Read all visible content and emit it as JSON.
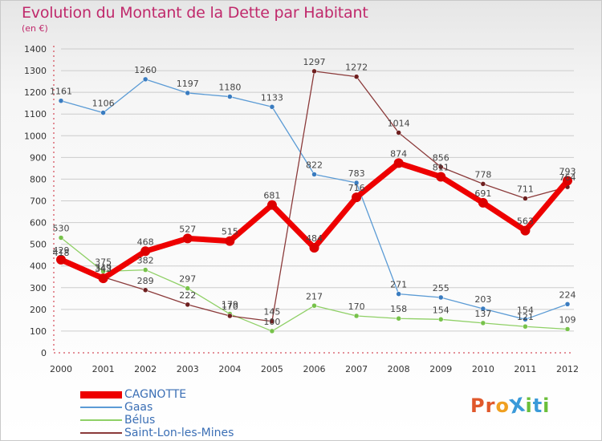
{
  "title": "Evolution du Montant de la Dette par Habitant",
  "subtitle": "(en €)",
  "logo": {
    "text": "ProXiti",
    "letter_colors": [
      "#e0582b",
      "#e0582b",
      "#f0a020",
      "#3a9ad9",
      "#6bbf3a",
      "#3a9ad9",
      "#6bbf3a"
    ]
  },
  "colors": {
    "axis": "#cc2233",
    "grid": "#cccccc",
    "tick_text": "#333333",
    "label_text": "#444444"
  },
  "chart_data": {
    "type": "line",
    "title": "Evolution du Montant de la Dette par Habitant",
    "subtitle": "(en €)",
    "xlabel": "",
    "ylabel": "",
    "x": [
      "2000",
      "2001",
      "2002",
      "2003",
      "2004",
      "2005",
      "2006",
      "2007",
      "2008",
      "2009",
      "2010",
      "2011",
      "2012"
    ],
    "ylim": [
      0,
      1400
    ],
    "yticks": [
      0,
      100,
      200,
      300,
      400,
      500,
      600,
      700,
      800,
      900,
      1000,
      1100,
      1200,
      1300,
      1400
    ],
    "grid": "horizontal",
    "legend_position": "bottom-left",
    "series": [
      {
        "name": "CAGNOTTE",
        "color": "#ee0000",
        "dot_color": "#dd0000",
        "width": 7,
        "values": [
          429,
          343,
          468,
          527,
          515,
          681,
          484,
          716,
          874,
          811,
          691,
          563,
          793
        ],
        "labels": [
          "429",
          "343",
          "468",
          "527",
          "515",
          "681",
          "484",
          "716",
          "874",
          "811",
          "691",
          "563",
          "793"
        ]
      },
      {
        "name": "Gaas",
        "color": "#5b9bd5",
        "dot_color": "#3a7cc0",
        "width": 1.3,
        "values": [
          1161,
          1106,
          1260,
          1197,
          1180,
          1133,
          822,
          783,
          271,
          255,
          203,
          154,
          224
        ],
        "labels": [
          "1161",
          "1106",
          "1260",
          "1197",
          "1180",
          "1133",
          "822",
          "783",
          "271",
          "255",
          "203",
          "154",
          "224"
        ]
      },
      {
        "name": "Bélus",
        "color": "#8fd066",
        "dot_color": "#77c24a",
        "width": 1.3,
        "values": [
          530,
          375,
          382,
          297,
          179,
          100,
          217,
          170,
          158,
          154,
          137,
          121,
          109
        ],
        "labels": [
          "530",
          "375",
          "382",
          "297",
          "179",
          "100",
          "217",
          "170",
          "158",
          "154",
          "137",
          "121",
          "109"
        ]
      },
      {
        "name": "Saint-Lon-les-Mines",
        "color": "#8b3a3a",
        "dot_color": "#6e1f1f",
        "width": 1.3,
        "values": [
          418,
          349,
          289,
          222,
          170,
          145,
          1297,
          1272,
          1014,
          856,
          778,
          711,
          764
        ],
        "labels": [
          "418",
          "349",
          "289",
          "222",
          "170",
          "145",
          "1297",
          "1272",
          "1014",
          "856",
          "778",
          "711",
          "764"
        ]
      }
    ]
  }
}
